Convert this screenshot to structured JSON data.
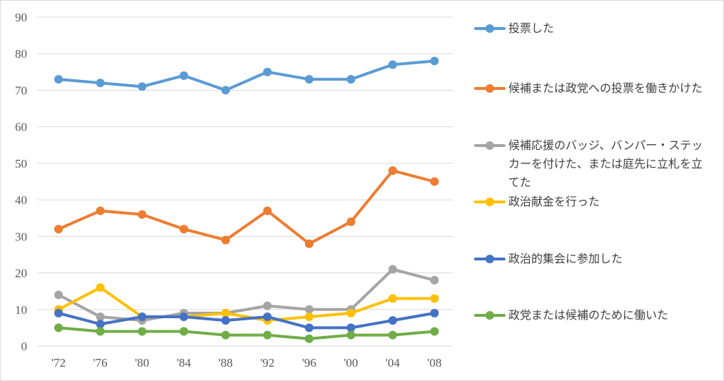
{
  "chart_data": {
    "type": "line",
    "title": "",
    "xlabel": "",
    "ylabel": "",
    "ylim": [
      0,
      90
    ],
    "yticks": [
      "0",
      "10",
      "20",
      "30",
      "40",
      "50",
      "60",
      "70",
      "80",
      "90"
    ],
    "categories": [
      "'72",
      "'76",
      "'80",
      "'84",
      "'88",
      "'92",
      "'96",
      "'00",
      "'04",
      "'08"
    ],
    "grid": "horizontal",
    "legend_position": "right",
    "series": [
      {
        "name": "投票した",
        "color": "#5b9bd5",
        "values": [
          73,
          72,
          71,
          74,
          70,
          75,
          73,
          73,
          77,
          78
        ]
      },
      {
        "name": "候補または政党への投票を働きかけた",
        "color": "#ed7d31",
        "values": [
          32,
          37,
          36,
          32,
          29,
          37,
          28,
          34,
          48,
          45
        ]
      },
      {
        "name": "候補応援のバッジ、バンパー・ステッカーを付けた、または庭先に立札を立てた",
        "color": "#a5a5a5",
        "values": [
          14,
          8,
          7,
          9,
          9,
          11,
          10,
          10,
          21,
          18
        ]
      },
      {
        "name": "政治献金を行った",
        "color": "#ffc000",
        "values": [
          10,
          16,
          8,
          8,
          9,
          7,
          8,
          9,
          13,
          13
        ]
      },
      {
        "name": "政治的集会に参加した",
        "color": "#4472c4",
        "values": [
          9,
          6,
          8,
          8,
          7,
          8,
          5,
          5,
          7,
          9
        ]
      },
      {
        "name": "政党または候補のために働いた",
        "color": "#70ad47",
        "values": [
          5,
          4,
          4,
          4,
          3,
          3,
          2,
          3,
          3,
          4
        ]
      }
    ]
  }
}
